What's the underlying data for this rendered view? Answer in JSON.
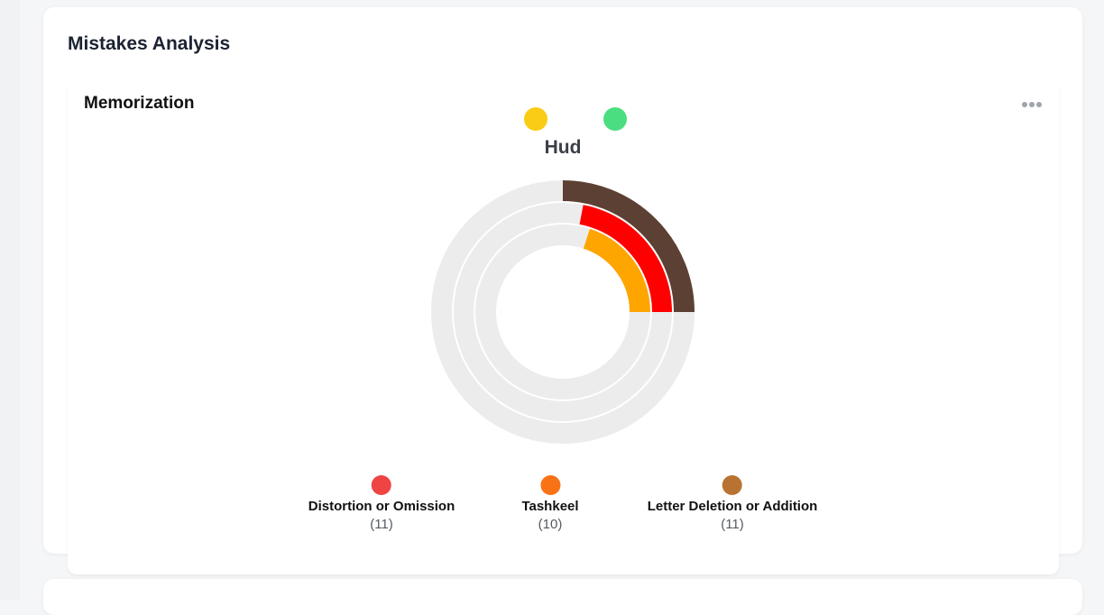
{
  "card": {
    "title": "Mistakes Analysis"
  },
  "section": {
    "title": "Memorization",
    "more_icon": "ellipsis-icon"
  },
  "chart_data": {
    "type": "radial-bar",
    "title": "Hud",
    "top_markers": [
      {
        "color": "#facc15"
      },
      {
        "color": "#4ade80"
      }
    ],
    "rings": [
      {
        "ring": "outer",
        "value": 11,
        "fraction": 0.25,
        "fill_color": "#5c4033",
        "track_color": "#ececec"
      },
      {
        "ring": "middle",
        "value": 11,
        "fraction": 0.22,
        "fill_color": "#ff0000",
        "track_color": "#ececec"
      },
      {
        "ring": "inner",
        "value": 10,
        "fraction": 0.2,
        "fill_color": "#ffa500",
        "track_color": "#ececec"
      }
    ]
  },
  "legend": {
    "items": [
      {
        "label": "Distortion or Omission",
        "count": "(11)",
        "color": "#ef4444"
      },
      {
        "label": "Tashkeel",
        "count": "(10)",
        "color": "#f97316"
      },
      {
        "label": "Letter Deletion or Addition",
        "count": "(11)",
        "color": "#b87333"
      }
    ]
  }
}
